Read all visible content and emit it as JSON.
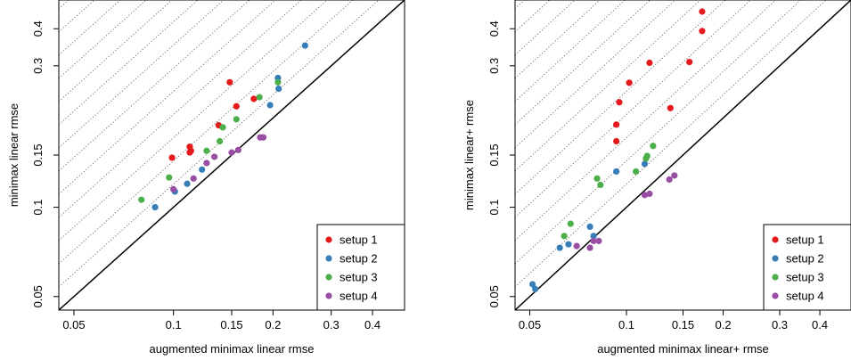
{
  "chart_data": [
    {
      "type": "scatter",
      "xlabel": "augmented minimax linear rmse",
      "ylabel": "minimax linear rmse",
      "x_scale": "log",
      "y_scale": "log",
      "xlim": [
        0.045,
        0.5
      ],
      "ylim": [
        0.045,
        0.5
      ],
      "x_ticks": [
        0.05,
        0.1,
        0.15,
        0.2,
        0.3,
        0.4
      ],
      "x_tick_labels": [
        "0.05",
        "0.1",
        "0.15",
        "0.2",
        "0.3",
        "0.4"
      ],
      "y_ticks": [
        0.05,
        0.1,
        0.15,
        0.3,
        0.4
      ],
      "y_tick_labels": [
        "0.05",
        "0.1",
        "0.15",
        "0.3",
        "0.4"
      ],
      "reference_line": "y = x (solid)",
      "dotted_lines": "y = k·x, k > 1",
      "legend_position": "bottom-right",
      "series": [
        {
          "name": "setup 1",
          "color": "#e41a1c",
          "points": [
            [
              0.099,
              0.147
            ],
            [
              0.112,
              0.16
            ],
            [
              0.113,
              0.155
            ],
            [
              0.112,
              0.153
            ],
            [
              0.137,
              0.189
            ],
            [
              0.148,
              0.264
            ],
            [
              0.155,
              0.219
            ],
            [
              0.175,
              0.232
            ]
          ]
        },
        {
          "name": "setup 2",
          "color": "#377eb8",
          "points": [
            [
              0.088,
              0.1
            ],
            [
              0.101,
              0.113
            ],
            [
              0.11,
              0.12
            ],
            [
              0.122,
              0.134
            ],
            [
              0.196,
              0.221
            ],
            [
              0.207,
              0.273
            ],
            [
              0.208,
              0.251
            ],
            [
              0.25,
              0.351
            ]
          ]
        },
        {
          "name": "setup 3",
          "color": "#4daf4a",
          "points": [
            [
              0.08,
              0.106
            ],
            [
              0.097,
              0.126
            ],
            [
              0.126,
              0.155
            ],
            [
              0.138,
              0.167
            ],
            [
              0.141,
              0.186
            ],
            [
              0.155,
              0.198
            ],
            [
              0.182,
              0.235
            ],
            [
              0.207,
              0.264
            ]
          ]
        },
        {
          "name": "setup 4",
          "color": "#984ea3",
          "points": [
            [
              0.1,
              0.115
            ],
            [
              0.115,
              0.125
            ],
            [
              0.126,
              0.141
            ],
            [
              0.133,
              0.148
            ],
            [
              0.15,
              0.153
            ],
            [
              0.157,
              0.156
            ],
            [
              0.183,
              0.172
            ],
            [
              0.187,
              0.172
            ]
          ]
        }
      ]
    },
    {
      "type": "scatter",
      "xlabel": "augmented minimax linear+ rmse",
      "ylabel": "minimax linear+ rmse",
      "x_scale": "log",
      "y_scale": "log",
      "xlim": [
        0.045,
        0.5
      ],
      "ylim": [
        0.045,
        0.5
      ],
      "x_ticks": [
        0.05,
        0.1,
        0.15,
        0.2,
        0.3,
        0.4
      ],
      "x_tick_labels": [
        "0.05",
        "0.1",
        "0.15",
        "0.2",
        "0.3",
        "0.4"
      ],
      "y_ticks": [
        0.05,
        0.1,
        0.15,
        0.3,
        0.4
      ],
      "y_tick_labels": [
        "0.05",
        "0.1",
        "0.15",
        "0.3",
        "0.4"
      ],
      "reference_line": "y = x (solid)",
      "dotted_lines": "y = k·x, k > 1",
      "legend_position": "bottom-right",
      "series": [
        {
          "name": "setup 1",
          "color": "#e41a1c",
          "points": [
            [
              0.093,
              0.167
            ],
            [
              0.093,
              0.19
            ],
            [
              0.095,
              0.226
            ],
            [
              0.102,
              0.263
            ],
            [
              0.118,
              0.307
            ],
            [
              0.137,
              0.216
            ],
            [
              0.157,
              0.309
            ],
            [
              0.172,
              0.393
            ],
            [
              0.172,
              0.457
            ]
          ]
        },
        {
          "name": "setup 2",
          "color": "#377eb8",
          "points": [
            [
              0.051,
              0.055
            ],
            [
              0.052,
              0.053
            ],
            [
              0.062,
              0.073
            ],
            [
              0.066,
              0.075
            ],
            [
              0.077,
              0.086
            ],
            [
              0.079,
              0.08
            ],
            [
              0.093,
              0.132
            ],
            [
              0.114,
              0.14
            ]
          ]
        },
        {
          "name": "setup 3",
          "color": "#4daf4a",
          "points": [
            [
              0.064,
              0.08
            ],
            [
              0.067,
              0.088
            ],
            [
              0.081,
              0.125
            ],
            [
              0.083,
              0.119
            ],
            [
              0.107,
              0.132
            ],
            [
              0.115,
              0.146
            ],
            [
              0.116,
              0.149
            ],
            [
              0.121,
              0.161
            ]
          ]
        },
        {
          "name": "setup 4",
          "color": "#984ea3",
          "points": [
            [
              0.07,
              0.074
            ],
            [
              0.077,
              0.073
            ],
            [
              0.079,
              0.077
            ],
            [
              0.082,
              0.077
            ],
            [
              0.114,
              0.11
            ],
            [
              0.118,
              0.111
            ],
            [
              0.136,
              0.124
            ],
            [
              0.141,
              0.128
            ]
          ]
        }
      ]
    }
  ]
}
